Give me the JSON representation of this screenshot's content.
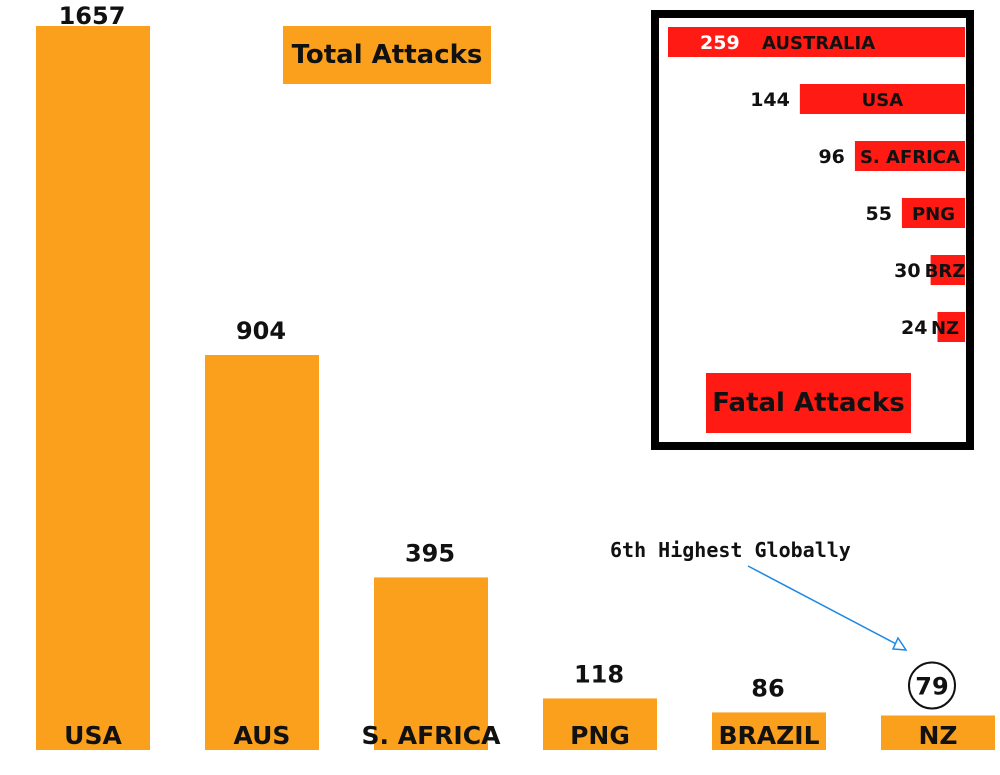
{
  "colors": {
    "total": "#FBA01C",
    "fatal": "#FF1A14",
    "arrow": "#1E88E5"
  },
  "chart_data": [
    {
      "type": "bar",
      "title": "Total Attacks",
      "categories": [
        "USA",
        "AUS",
        "S. AFRICA",
        "PNG",
        "BRAZIL",
        "NZ"
      ],
      "values": [
        1657,
        904,
        395,
        118,
        86,
        79
      ],
      "value_labels": [
        "1657",
        "904",
        "395",
        "118",
        "86",
        "79"
      ],
      "ylim": [
        0,
        1657
      ],
      "grid": false,
      "highlight": {
        "category": "NZ",
        "style": "circled-value"
      },
      "annotation": {
        "text": "6th Highest Globally",
        "target": "NZ"
      }
    },
    {
      "type": "bar",
      "orientation": "horizontal",
      "title": "Fatal Attacks",
      "categories": [
        "AUSTRALIA",
        "USA",
        "S. AFRICA",
        "PNG",
        "BRZ",
        "NZ"
      ],
      "values": [
        259,
        144,
        96,
        55,
        30,
        24
      ],
      "value_labels": [
        "259",
        "144",
        "96",
        "55",
        "30",
        "24"
      ],
      "ylim": [
        0,
        259
      ],
      "grid": false
    }
  ]
}
